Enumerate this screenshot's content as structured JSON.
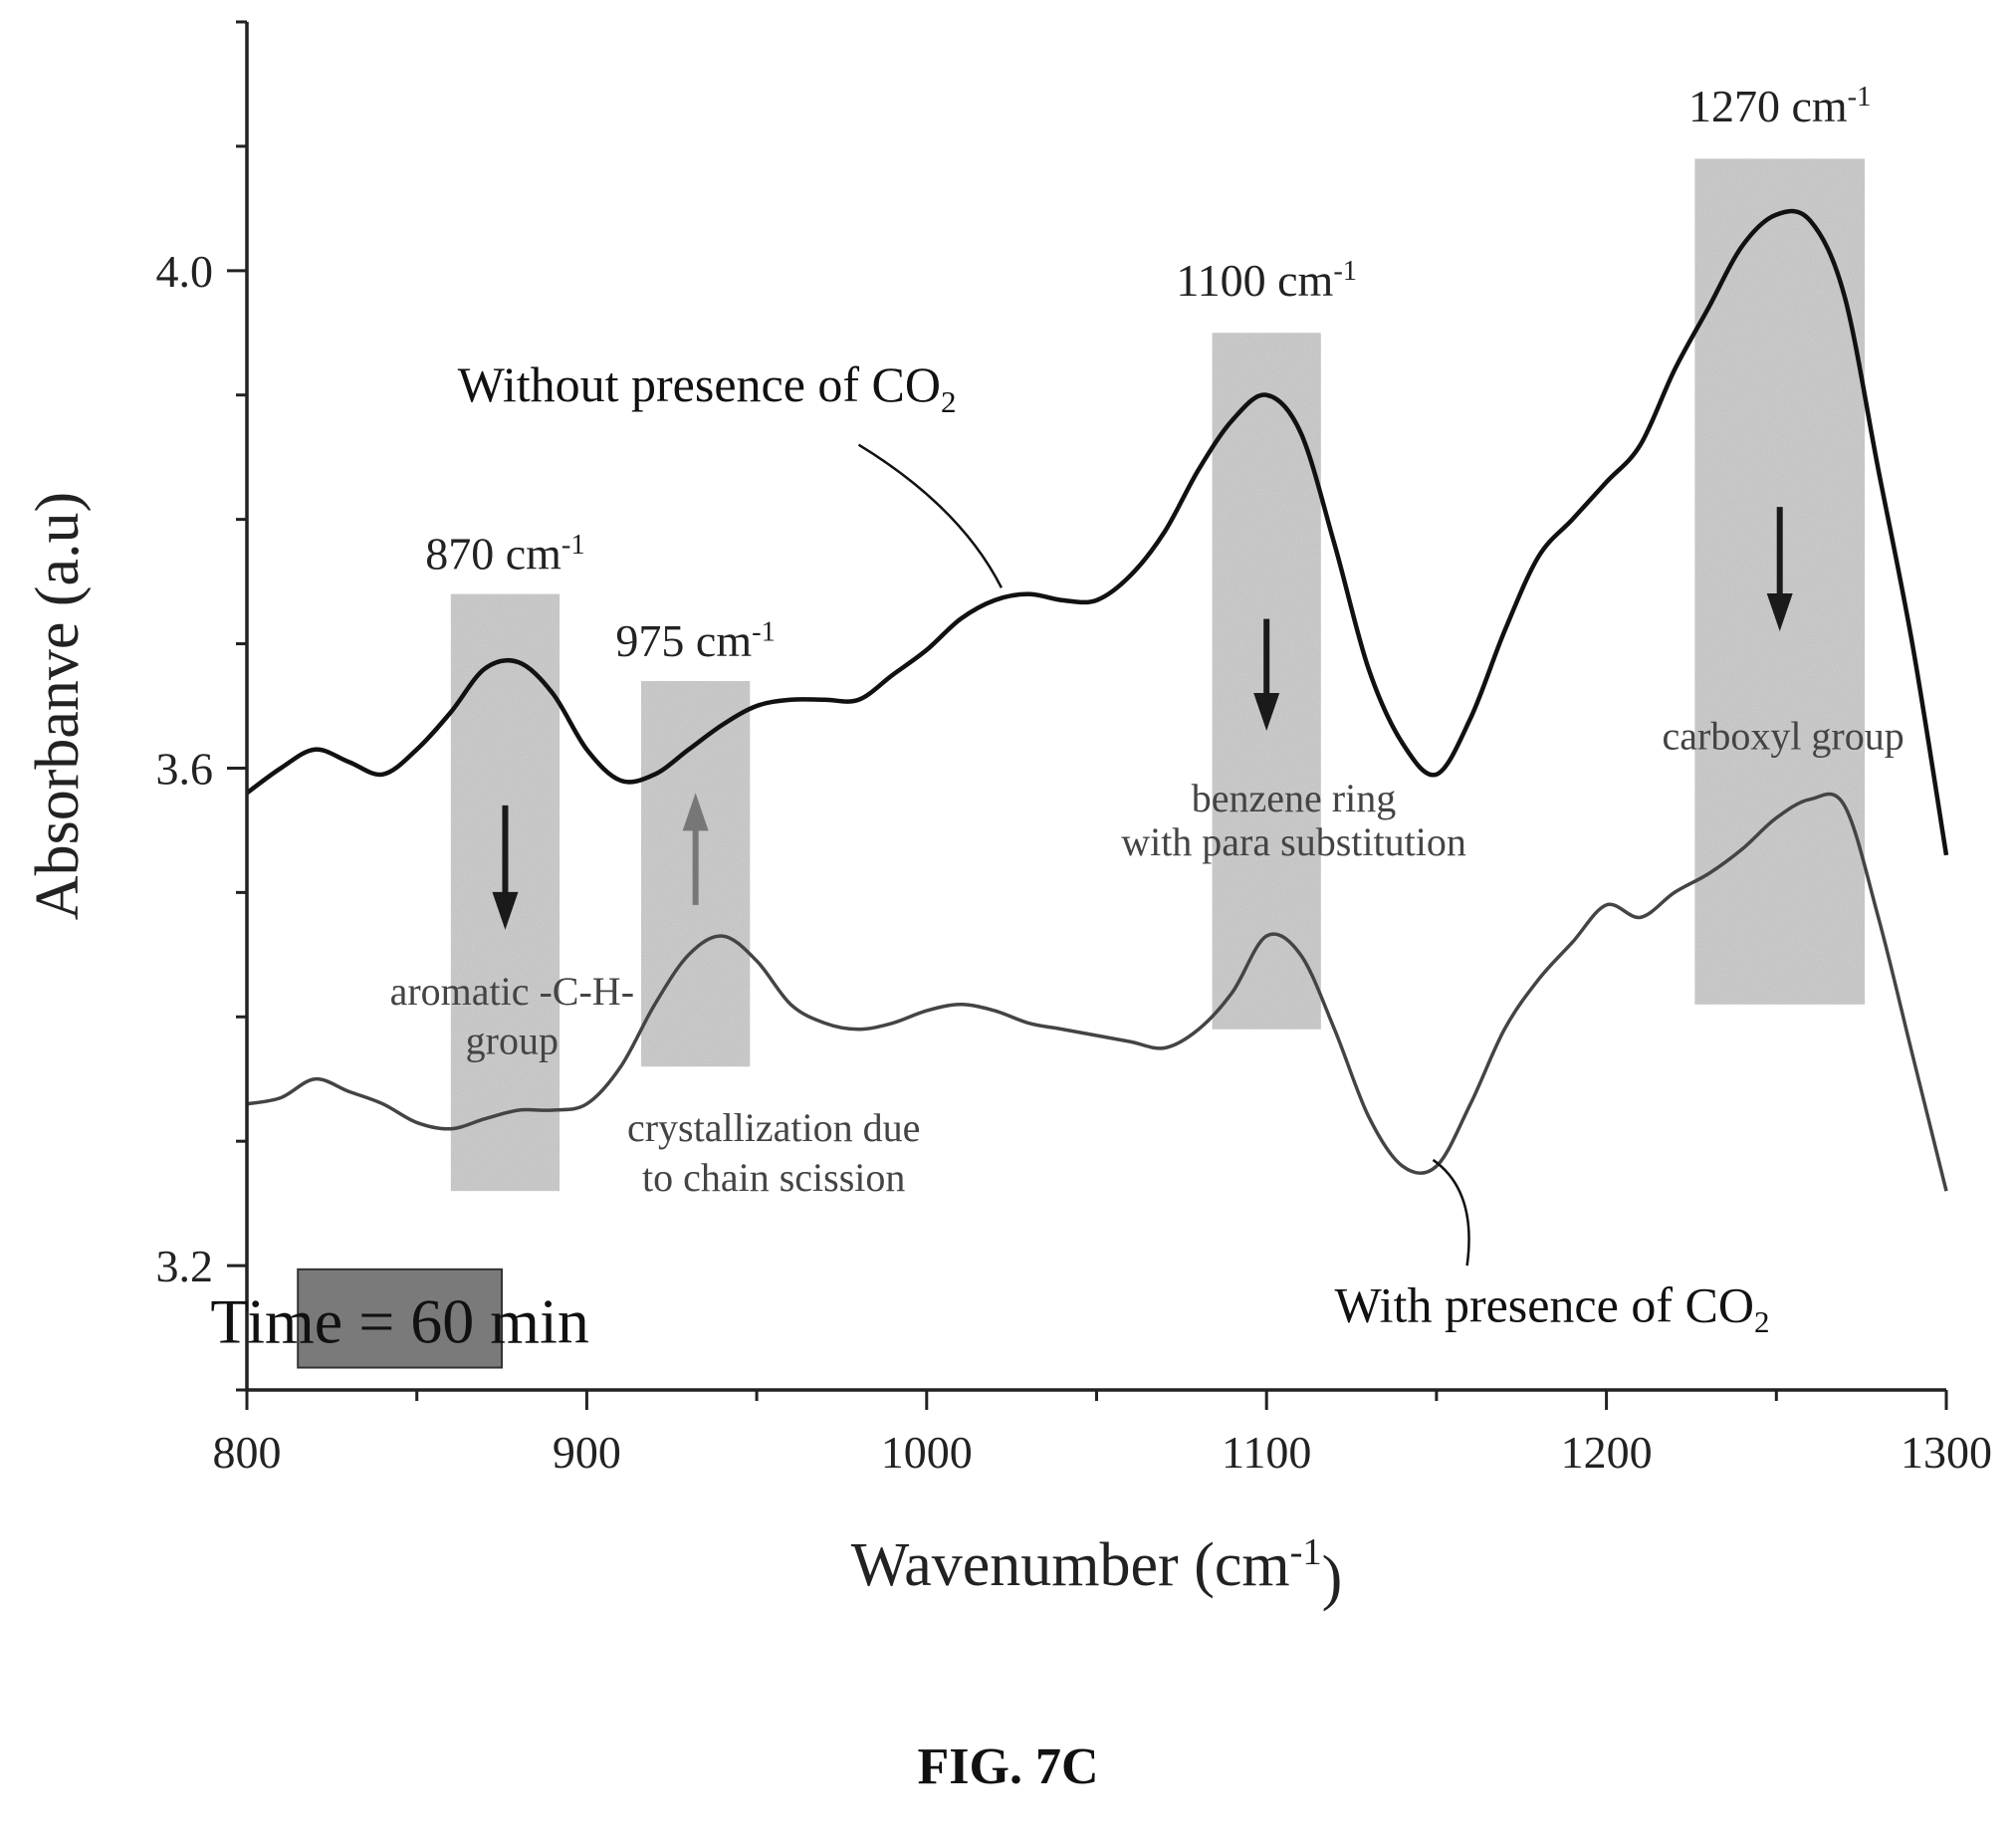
{
  "chart_data": {
    "type": "line",
    "xlabel": "Wavenumber (cm-1)",
    "xlabel_base": "Wavenumber (cm",
    "xlabel_sup": "-1",
    "xlabel_end": ")",
    "ylabel": "Absorbanve (a.u)",
    "xlim": [
      800,
      1300
    ],
    "ylim": [
      3.1,
      4.2
    ],
    "x_ticks": [
      800,
      900,
      1000,
      1100,
      1200,
      1300
    ],
    "y_ticks": [
      3.2,
      3.6,
      4.0
    ],
    "y_tick_labels": [
      "3.2",
      "3.6",
      "4.0"
    ],
    "grid": false,
    "series": [
      {
        "name": "Without presence of CO2",
        "label_base": "Without presence of CO",
        "label_sub": "2",
        "color": "#111111",
        "x": [
          800,
          810,
          820,
          830,
          840,
          850,
          860,
          870,
          880,
          890,
          900,
          910,
          920,
          930,
          940,
          950,
          960,
          970,
          980,
          990,
          1000,
          1010,
          1020,
          1030,
          1040,
          1050,
          1060,
          1070,
          1080,
          1090,
          1100,
          1110,
          1120,
          1130,
          1140,
          1150,
          1160,
          1170,
          1180,
          1190,
          1200,
          1210,
          1220,
          1230,
          1240,
          1250,
          1260,
          1270,
          1280,
          1290,
          1300
        ],
        "y": [
          3.58,
          3.6,
          3.615,
          3.605,
          3.595,
          3.615,
          3.645,
          3.68,
          3.685,
          3.66,
          3.615,
          3.59,
          3.595,
          3.615,
          3.635,
          3.65,
          3.655,
          3.655,
          3.655,
          3.675,
          3.695,
          3.72,
          3.735,
          3.74,
          3.735,
          3.735,
          3.755,
          3.79,
          3.84,
          3.88,
          3.9,
          3.87,
          3.78,
          3.68,
          3.62,
          3.595,
          3.64,
          3.71,
          3.77,
          3.8,
          3.83,
          3.86,
          3.92,
          3.97,
          4.02,
          4.045,
          4.04,
          3.98,
          3.84,
          3.7,
          3.53
        ]
      },
      {
        "name": "With presence of CO2",
        "label_base": "With presence of CO",
        "label_sub": "2",
        "color": "#444444",
        "x": [
          800,
          810,
          820,
          830,
          840,
          850,
          860,
          870,
          880,
          890,
          900,
          910,
          920,
          930,
          940,
          950,
          960,
          970,
          980,
          990,
          1000,
          1010,
          1020,
          1030,
          1040,
          1050,
          1060,
          1070,
          1080,
          1090,
          1100,
          1110,
          1120,
          1130,
          1140,
          1150,
          1160,
          1170,
          1180,
          1190,
          1200,
          1210,
          1220,
          1230,
          1240,
          1250,
          1260,
          1270,
          1280,
          1290,
          1300
        ],
        "y": [
          3.33,
          3.335,
          3.35,
          3.34,
          3.33,
          3.315,
          3.31,
          3.318,
          3.325,
          3.325,
          3.33,
          3.36,
          3.41,
          3.45,
          3.465,
          3.445,
          3.41,
          3.395,
          3.39,
          3.395,
          3.405,
          3.41,
          3.405,
          3.395,
          3.39,
          3.385,
          3.38,
          3.375,
          3.39,
          3.42,
          3.465,
          3.45,
          3.39,
          3.32,
          3.28,
          3.28,
          3.33,
          3.39,
          3.43,
          3.46,
          3.49,
          3.48,
          3.5,
          3.515,
          3.535,
          3.56,
          3.575,
          3.57,
          3.48,
          3.37,
          3.26
        ]
      }
    ],
    "bands": [
      {
        "label": "870 cm-1",
        "label_base": "870 cm",
        "label_sup": "-1",
        "x0": 860,
        "x1": 892,
        "y0": 3.26,
        "y1": 3.74,
        "arrow": "down",
        "arrow_color": "#1a1a1a",
        "annotation": [
          "aromatic -C-H-",
          "group"
        ]
      },
      {
        "label": "975 cm-1",
        "label_base": "975 cm",
        "label_sup": "-1",
        "x0": 916,
        "x1": 948,
        "y0": 3.36,
        "y1": 3.67,
        "arrow": "up",
        "arrow_color": "#777777",
        "annotation": [
          "crystallization due",
          "to chain scission"
        ]
      },
      {
        "label": "1100 cm-1",
        "label_base": "1100 cm",
        "label_sup": "-1",
        "x0": 1084,
        "x1": 1116,
        "y0": 3.39,
        "y1": 3.95,
        "arrow": "down",
        "arrow_color": "#1a1a1a",
        "annotation": [
          "benzene ring",
          "with para substitution"
        ]
      },
      {
        "label": "1270 cm-1",
        "label_base": "1270 cm",
        "label_sup": "-1",
        "x0": 1226,
        "x1": 1276,
        "y0": 3.41,
        "y1": 4.09,
        "arrow": "down",
        "arrow_color": "#1a1a1a",
        "annotation": [
          "carboxyl group"
        ]
      }
    ],
    "inset_label": "Time = 60 min",
    "caption": "FIG. 7C"
  }
}
